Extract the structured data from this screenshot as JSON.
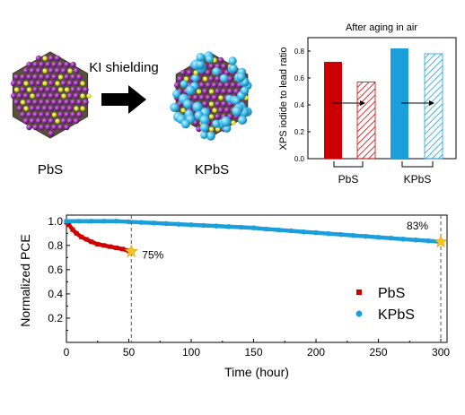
{
  "schematic": {
    "left_label": "PbS",
    "right_label": "KPbS",
    "arrow_label": "KI shielding"
  },
  "chart_data": [
    {
      "type": "bar",
      "title": "After aging in air",
      "xlabel": "",
      "ylabel": "XPS iodide to lead ratio",
      "ylim": [
        0,
        0.9
      ],
      "yticks": [
        "0.0",
        "0.2",
        "0.4",
        "0.6",
        "0.8"
      ],
      "groups": [
        "PbS",
        "KPbS"
      ],
      "bars": [
        {
          "group": "PbS",
          "state": "fresh",
          "value": 0.72,
          "color": "#cc0000",
          "pattern": "solid"
        },
        {
          "group": "PbS",
          "state": "aged",
          "value": 0.57,
          "color": "#cc0000",
          "pattern": "hatched"
        },
        {
          "group": "KPbS",
          "state": "fresh",
          "value": 0.82,
          "color": "#1a9fdb",
          "pattern": "solid"
        },
        {
          "group": "KPbS",
          "state": "aged",
          "value": 0.78,
          "color": "#1a9fdb",
          "pattern": "hatched"
        }
      ]
    },
    {
      "type": "scatter",
      "title": "",
      "xlabel": "Time (hour)",
      "ylabel": "Normalized PCE",
      "xlim": [
        0,
        305
      ],
      "ylim": [
        0,
        1.05
      ],
      "xticks": [
        "0",
        "50",
        "100",
        "150",
        "200",
        "250",
        "300"
      ],
      "yticks": [
        "0.2",
        "0.4",
        "0.6",
        "0.8",
        "1.0"
      ],
      "legend_position": "bottom-right",
      "series": [
        {
          "name": "PbS",
          "color": "#cc0000",
          "marker": "square",
          "x": [
            0,
            2,
            5,
            8,
            12,
            16,
            20,
            25,
            30,
            35,
            40,
            45,
            50,
            52
          ],
          "y": [
            0.99,
            0.97,
            0.93,
            0.9,
            0.87,
            0.85,
            0.83,
            0.81,
            0.8,
            0.79,
            0.78,
            0.77,
            0.755,
            0.75
          ]
        },
        {
          "name": "KPbS",
          "color": "#1a9fdb",
          "marker": "circle",
          "x": [
            0,
            10,
            20,
            30,
            40,
            50,
            60,
            70,
            80,
            90,
            100,
            110,
            120,
            130,
            140,
            150,
            160,
            170,
            180,
            190,
            200,
            210,
            220,
            230,
            240,
            250,
            260,
            270,
            280,
            290,
            300
          ],
          "y": [
            1.0,
            1.0,
            1.0,
            1.0,
            1.0,
            0.995,
            0.99,
            0.985,
            0.98,
            0.975,
            0.97,
            0.965,
            0.96,
            0.955,
            0.95,
            0.945,
            0.935,
            0.928,
            0.92,
            0.912,
            0.905,
            0.897,
            0.89,
            0.882,
            0.875,
            0.867,
            0.86,
            0.852,
            0.845,
            0.838,
            0.83
          ]
        }
      ],
      "annotations": [
        {
          "text": "75%",
          "x": 52,
          "y": 0.75
        },
        {
          "text": "83%",
          "x": 300,
          "y": 0.83
        }
      ]
    }
  ]
}
